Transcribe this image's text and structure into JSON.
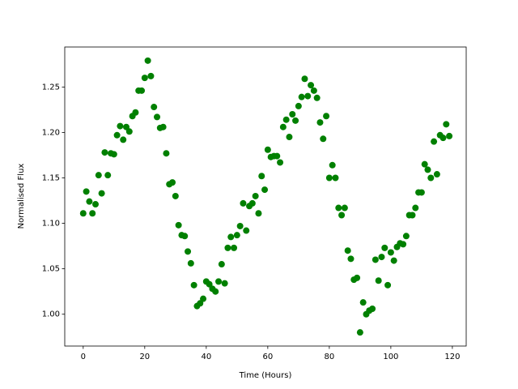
{
  "chart_data": {
    "type": "scatter",
    "xlabel": "Time (Hours)",
    "ylabel": "Normalised Flux",
    "color": "#008000",
    "x": [
      0,
      1,
      2,
      3,
      4,
      5,
      6,
      7,
      8,
      9,
      10,
      11,
      12,
      13,
      14,
      15,
      16,
      17,
      18,
      19,
      20,
      21,
      22,
      23,
      24,
      25,
      26,
      27,
      28,
      29,
      30,
      31,
      32,
      33,
      34,
      35,
      36,
      37,
      38,
      39,
      40,
      41,
      42,
      43,
      44,
      45,
      46,
      47,
      48,
      49,
      50,
      51,
      52,
      53,
      54,
      55,
      56,
      57,
      58,
      59,
      60,
      61,
      62,
      63,
      64,
      65,
      66,
      67,
      68,
      69,
      70,
      71,
      72,
      73,
      74,
      75,
      76,
      77,
      78,
      79,
      80,
      81,
      82,
      83,
      84,
      85,
      86,
      87,
      88,
      89,
      90,
      91,
      92,
      93,
      94,
      95,
      96,
      97,
      98,
      99,
      100,
      101,
      102,
      103,
      104,
      105,
      106,
      107,
      108,
      109,
      110,
      111,
      112,
      113,
      114,
      115,
      116,
      117,
      118,
      119
    ],
    "y": [
      1.111,
      1.135,
      1.124,
      1.111,
      1.121,
      1.153,
      1.133,
      1.178,
      1.153,
      1.177,
      1.176,
      1.197,
      1.207,
      1.192,
      1.206,
      1.201,
      1.218,
      1.222,
      1.246,
      1.246,
      1.26,
      1.279,
      1.262,
      1.228,
      1.217,
      1.205,
      1.206,
      1.177,
      1.143,
      1.145,
      1.13,
      1.098,
      1.087,
      1.086,
      1.069,
      1.056,
      1.032,
      1.009,
      1.012,
      1.017,
      1.036,
      1.033,
      1.028,
      1.025,
      1.036,
      1.055,
      1.034,
      1.073,
      1.085,
      1.073,
      1.087,
      1.097,
      1.122,
      1.092,
      1.119,
      1.122,
      1.13,
      1.111,
      1.152,
      1.137,
      1.181,
      1.173,
      1.174,
      1.174,
      1.167,
      1.206,
      1.214,
      1.195,
      1.22,
      1.213,
      1.229,
      1.239,
      1.259,
      1.24,
      1.252,
      1.246,
      1.238,
      1.211,
      1.193,
      1.218,
      1.15,
      1.164,
      1.15,
      1.117,
      1.109,
      1.117,
      1.07,
      1.061,
      1.038,
      1.04,
      0.98,
      1.013,
      1.0,
      1.004,
      1.006,
      1.06,
      1.037,
      1.063,
      1.073,
      1.032,
      1.068,
      1.059,
      1.074,
      1.078,
      1.077,
      1.086,
      1.109,
      1.109,
      1.117,
      1.134,
      1.134,
      1.165,
      1.159,
      1.15,
      1.19,
      1.154,
      1.197,
      1.194,
      1.209,
      1.196
    ],
    "xlim": [
      -6,
      124.5
    ],
    "ylim": [
      0.965,
      1.294
    ],
    "xticks": [
      0,
      20,
      40,
      60,
      80,
      100,
      120
    ],
    "yticks": [
      {
        "value": 1,
        "label": "1.00"
      },
      1.05,
      {
        "value": 1.1,
        "label": "1.10"
      },
      1.15,
      {
        "value": 1.2,
        "label": "1.20"
      },
      1.25
    ]
  }
}
